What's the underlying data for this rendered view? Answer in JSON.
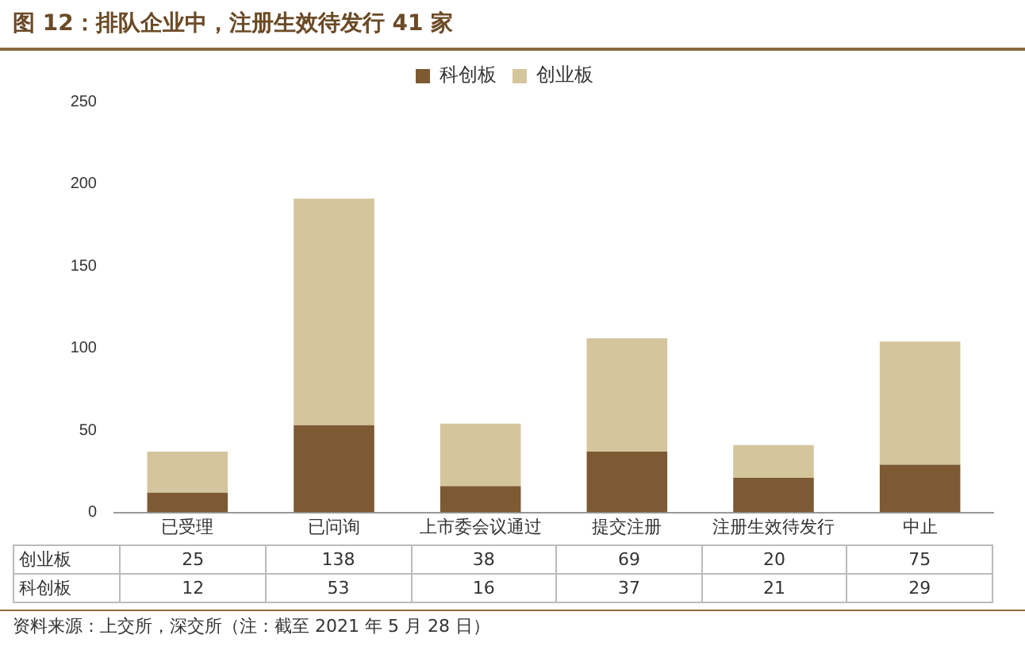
{
  "chart_data": {
    "type": "bar",
    "title": "图 12：排队企业中，注册生效待发行 41 家",
    "categories": [
      "已受理",
      "已问询",
      "上市委会议通过",
      "提交注册",
      "注册生效待发行",
      "中止"
    ],
    "series": [
      {
        "name": "科创板",
        "color": "#7d5a33",
        "values": [
          12,
          53,
          16,
          37,
          21,
          29
        ]
      },
      {
        "name": "创业板",
        "color": "#d5c59d",
        "values": [
          25,
          138,
          38,
          69,
          20,
          75
        ]
      }
    ],
    "stacked": true,
    "ylim": [
      0,
      250
    ],
    "yticks": [
      0,
      50,
      100,
      150,
      200,
      250
    ],
    "grid": false,
    "legend": "top",
    "data_labels": true,
    "annotations": [
      "资料来源：上交所，深交所（注：截至 2021 年 5 月 28 日）"
    ]
  }
}
